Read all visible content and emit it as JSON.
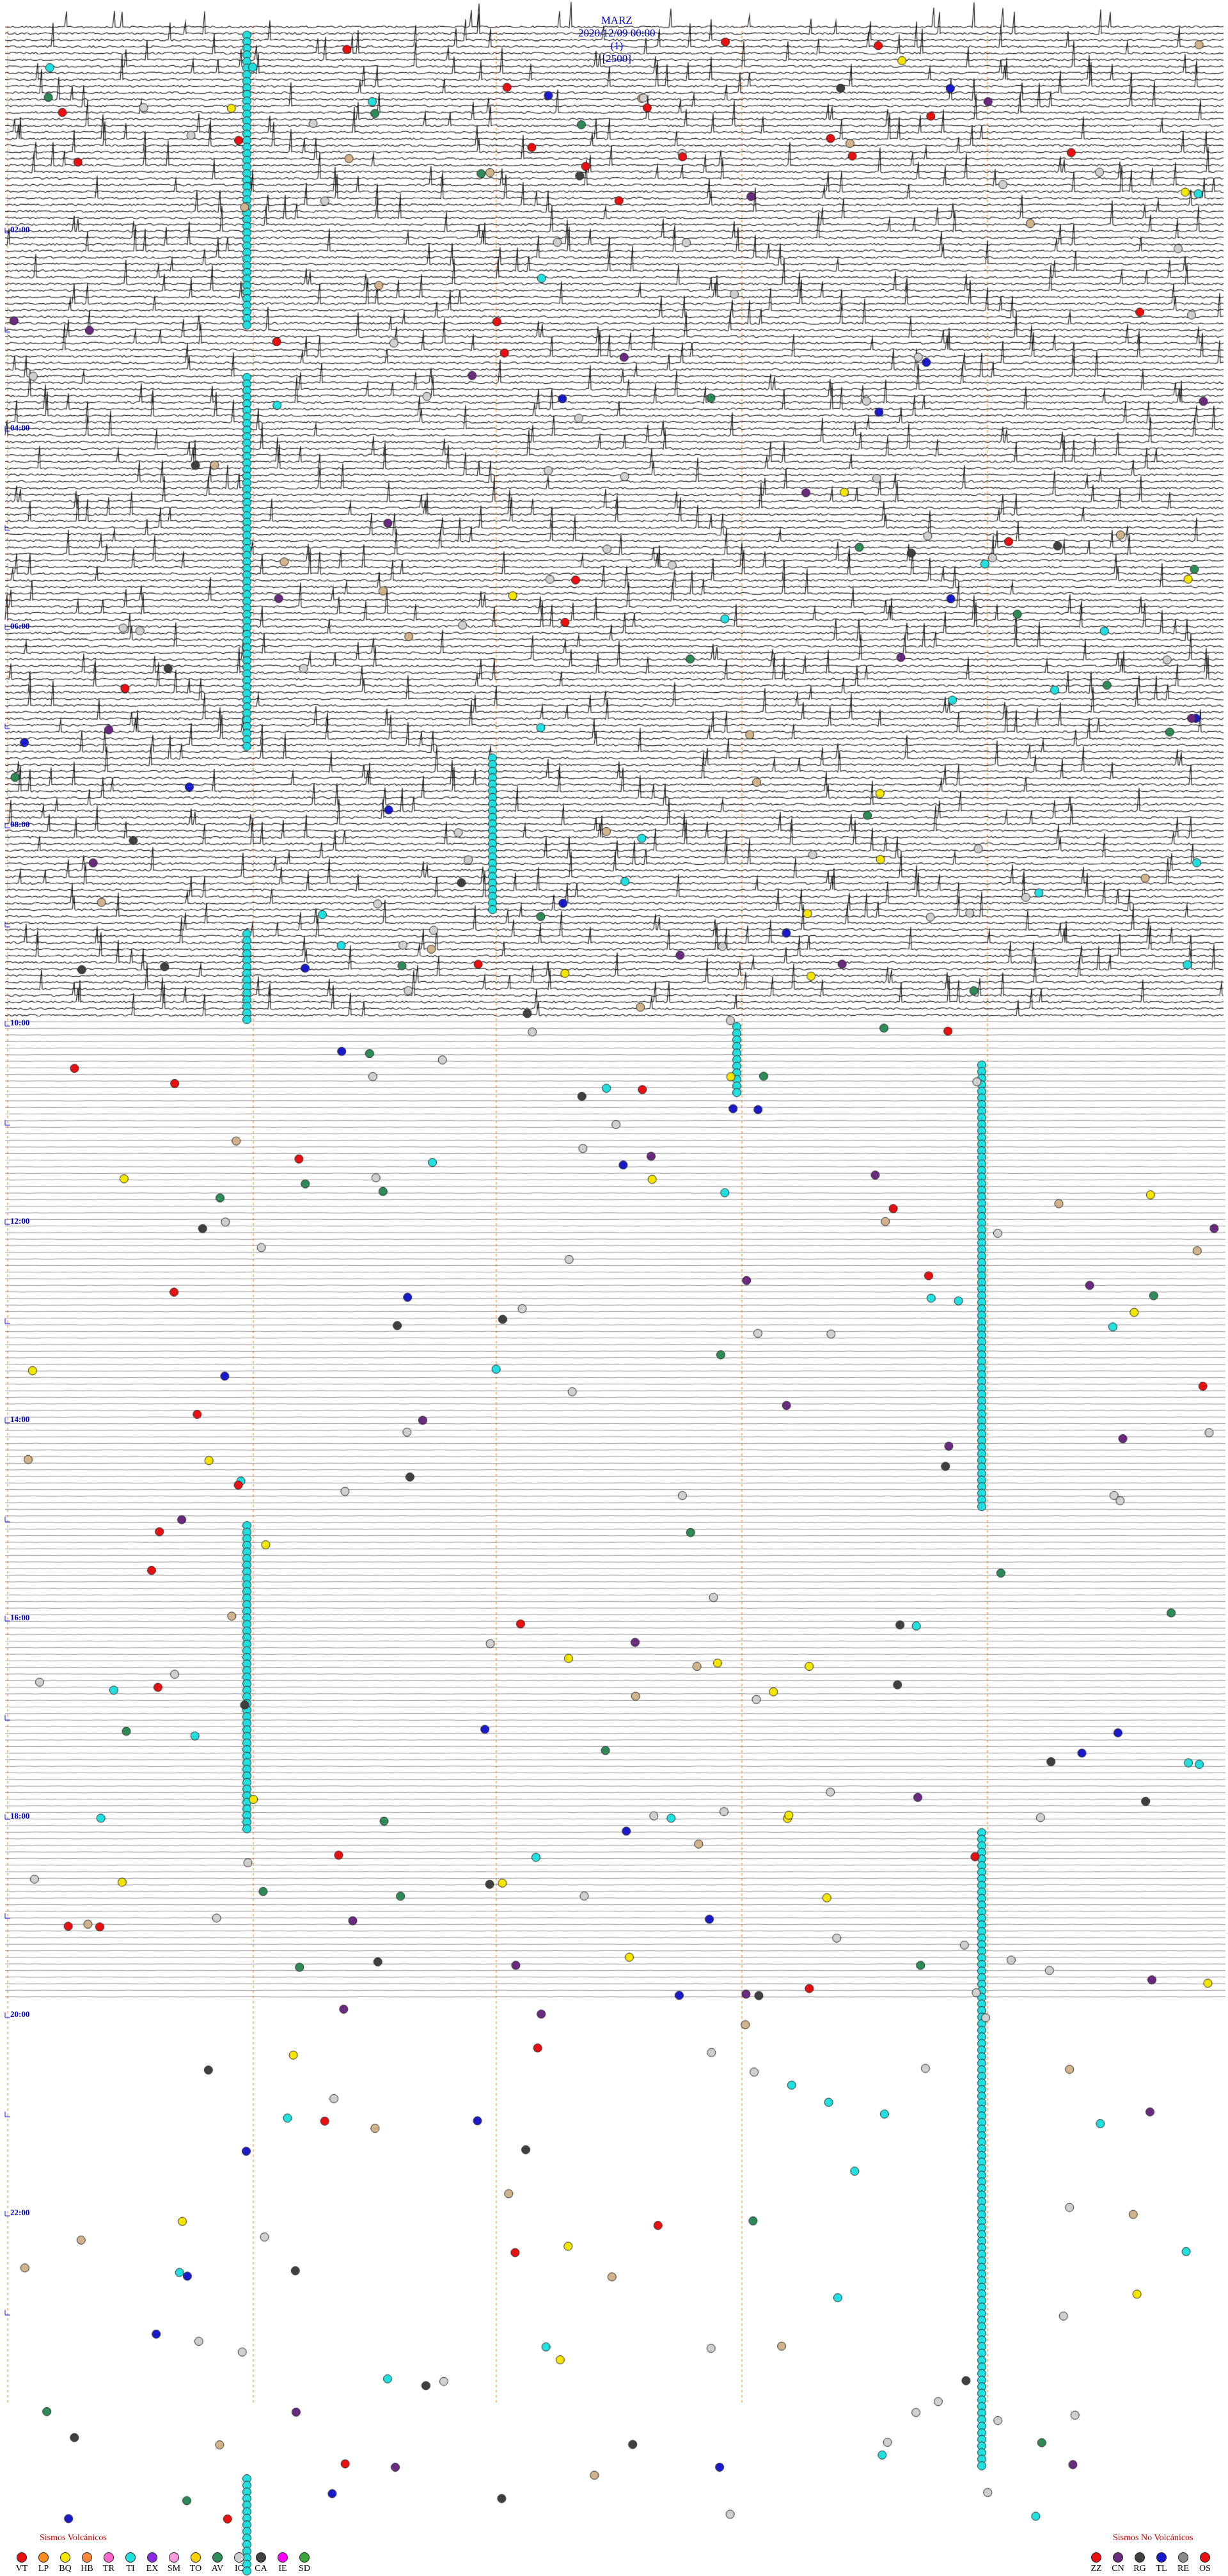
{
  "header": {
    "station": "MARZ",
    "datetime": "2020/12/09 00:00",
    "channel": "(1)",
    "scale": "[2500]"
  },
  "time_labels": [
    "02:00",
    "04:00",
    "06:00",
    "08:00",
    "10:00",
    "12:00",
    "14:00",
    "16:00",
    "18:00",
    "20:00",
    "22:00"
  ],
  "legend_volcanic": {
    "title": "Sismos Volcánicos",
    "items": [
      {
        "code": "VT",
        "color": "#e81010"
      },
      {
        "code": "LP",
        "color": "#ff8c1a"
      },
      {
        "code": "BQ",
        "color": "#f5e600"
      },
      {
        "code": "HB",
        "color": "#ff8a3d"
      },
      {
        "code": "TR",
        "color": "#ff66cc"
      },
      {
        "code": "TI",
        "color": "#22e0e0"
      },
      {
        "code": "EX",
        "color": "#8a2be2"
      },
      {
        "code": "SM",
        "color": "#ff99dd"
      },
      {
        "code": "TO",
        "color": "#ffd000"
      },
      {
        "code": "AV",
        "color": "#2e8b57"
      },
      {
        "code": "IC",
        "color": "#d0d0d0"
      },
      {
        "code": "CA",
        "color": "#404040"
      },
      {
        "code": "IE",
        "color": "#ff00ff"
      },
      {
        "code": "SD",
        "color": "#39a839"
      }
    ]
  },
  "legend_nonvolcanic": {
    "title": "Sismos No Volcánicos",
    "items": [
      {
        "code": "ZZ",
        "color": "#e81010"
      },
      {
        "code": "CN",
        "color": "#6a2a80"
      },
      {
        "code": "RG",
        "color": "#404040"
      },
      {
        "code": "TL",
        "color": "#1a1acc"
      },
      {
        "code": "RE",
        "color": "#8a8a8a"
      },
      {
        "code": "OS",
        "color": "#e81010"
      }
    ]
  },
  "chart_data": {
    "type": "scatter",
    "description_kind": "helicorder",
    "trace_span_hours": 24,
    "event_classes": [
      "VT",
      "LP",
      "BQ",
      "HB",
      "TR",
      "TI",
      "EX",
      "SM",
      "TO",
      "AV",
      "IC",
      "CA",
      "IE",
      "SD",
      "ZZ",
      "CN",
      "RG",
      "TL",
      "RE",
      "OS"
    ],
    "continuous_ti_bands": [
      {
        "start": "00:00",
        "end": "03:20"
      },
      {
        "start": "03:55",
        "end": "07:35"
      },
      {
        "start": "07:35",
        "end": "09:10"
      },
      {
        "start": "09:50",
        "end": "10:05"
      },
      {
        "start": "10:20",
        "end": "15:05"
      },
      {
        "start": "15:05",
        "end": "18:05"
      },
      {
        "start": "18:05",
        "end": "23:59"
      }
    ]
  }
}
